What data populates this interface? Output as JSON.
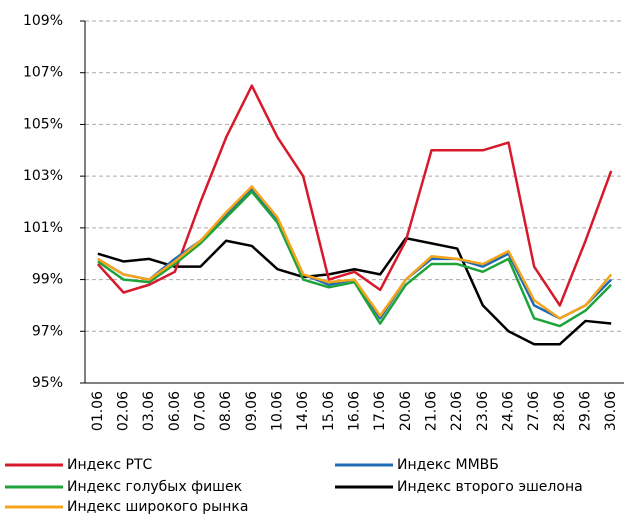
{
  "chart_data": {
    "type": "line",
    "categories": [
      "01.06",
      "02.06",
      "03.06",
      "06.06",
      "07.06",
      "08.06",
      "09.06",
      "10.06",
      "14.06",
      "15.06",
      "16.06",
      "17.06",
      "20.06",
      "21.06",
      "22.06",
      "23.06",
      "24.06",
      "27.06",
      "28.06",
      "29.06",
      "30.06"
    ],
    "series": [
      {
        "name": "Индекс РТС",
        "color": "#d7192c",
        "values": [
          99.6,
          98.5,
          98.8,
          99.3,
          102.0,
          104.5,
          106.5,
          104.5,
          103.0,
          99.0,
          99.3,
          98.6,
          100.5,
          104.0,
          104.0,
          104.0,
          104.3,
          99.5,
          98.0,
          100.5,
          103.2
        ]
      },
      {
        "name": "Индекс ММВБ",
        "color": "#1f6bb4",
        "values": [
          99.8,
          99.2,
          99.0,
          99.8,
          100.5,
          101.5,
          102.5,
          101.3,
          99.2,
          98.8,
          99.0,
          97.5,
          99.0,
          99.8,
          99.8,
          99.5,
          100.0,
          98.0,
          97.5,
          98.0,
          99.0
        ]
      },
      {
        "name": "Индекс голубых фишек",
        "color": "#1ea33a",
        "values": [
          99.7,
          99.0,
          98.9,
          99.6,
          100.4,
          101.4,
          102.4,
          101.2,
          99.0,
          98.7,
          98.9,
          97.3,
          98.8,
          99.6,
          99.6,
          99.3,
          99.8,
          97.5,
          97.2,
          97.8,
          98.8
        ]
      },
      {
        "name": "Индекс второго эшелона",
        "color": "#000000",
        "values": [
          100.0,
          99.7,
          99.8,
          99.5,
          99.5,
          100.5,
          100.3,
          99.4,
          99.1,
          99.2,
          99.4,
          99.2,
          100.6,
          100.4,
          100.2,
          98.0,
          97.0,
          96.5,
          96.5,
          97.4,
          97.3
        ]
      },
      {
        "name": "Индекс широкого рынка",
        "color": "#f5a41c",
        "values": [
          99.8,
          99.2,
          99.0,
          99.7,
          100.5,
          101.6,
          102.6,
          101.4,
          99.2,
          98.9,
          99.0,
          97.6,
          99.0,
          99.9,
          99.8,
          99.6,
          100.1,
          98.2,
          97.5,
          98.0,
          99.2
        ]
      }
    ],
    "ylim": [
      95,
      109
    ],
    "yticks": [
      {
        "value": 95,
        "label": "95%"
      },
      {
        "value": 97,
        "label": "97%"
      },
      {
        "value": 99,
        "label": "99%"
      },
      {
        "value": 101,
        "label": "101%"
      },
      {
        "value": 103,
        "label": "103%"
      },
      {
        "value": 105,
        "label": "105%"
      },
      {
        "value": 107,
        "label": "107%"
      },
      {
        "value": 109,
        "label": "109%"
      }
    ],
    "grid": true
  }
}
